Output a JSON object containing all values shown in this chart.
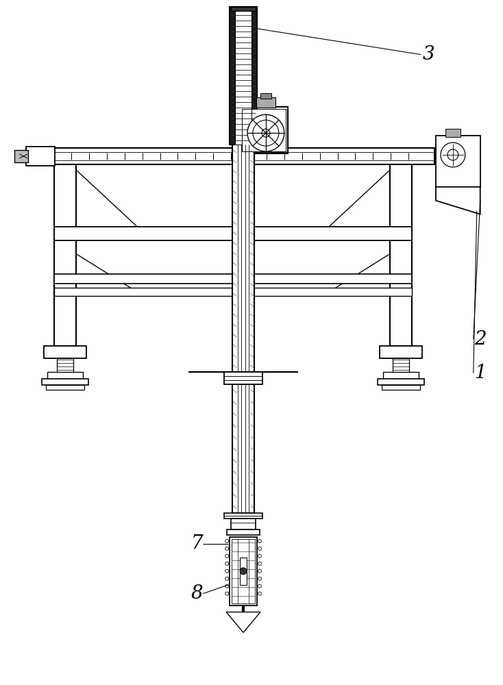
{
  "bg_color": "#ffffff",
  "lc": "#000000",
  "gray_light": "#cccccc",
  "gray_med": "#888888",
  "label_3": "3",
  "label_2": "2",
  "label_1": "1",
  "label_7": "7",
  "label_8": "8",
  "font_size": 20,
  "fig_w": 7.34,
  "fig_h": 10.0,
  "dpi": 100
}
